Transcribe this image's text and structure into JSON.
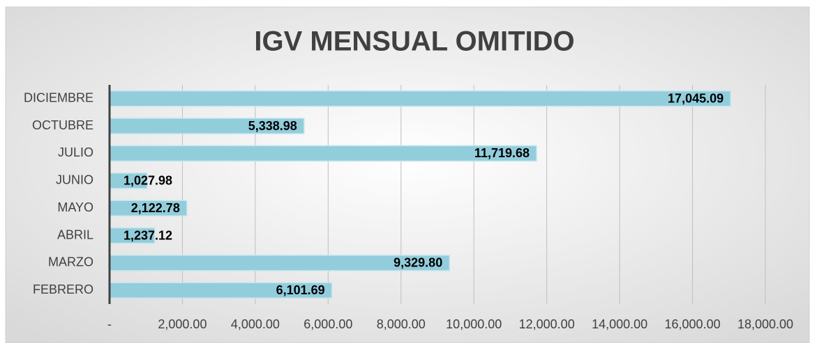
{
  "chart_data": {
    "type": "bar",
    "orientation": "horizontal",
    "title": "IGV MENSUAL OMITIDO",
    "categories": [
      "FEBRERO",
      "MARZO",
      "ABRIL",
      "MAYO",
      "JUNIO",
      "JULIO",
      "OCTUBRE",
      "DICIEMBRE"
    ],
    "values": [
      6101.69,
      9329.8,
      1237.12,
      2122.78,
      1027.98,
      11719.68,
      5338.98,
      17045.09
    ],
    "value_labels": [
      "6,101.69",
      "9,329.80",
      "1,237.12",
      "2,122.78",
      "1,027.98",
      "11,719.68",
      "5,338.98",
      "17,045.09"
    ],
    "color": "#92cddc",
    "xlim": [
      0,
      18000
    ],
    "xticks": [
      {
        "value": 0,
        "label": "-"
      },
      {
        "value": 2000,
        "label": "2,000.00"
      },
      {
        "value": 4000,
        "label": "4,000.00"
      },
      {
        "value": 6000,
        "label": "6,000.00"
      },
      {
        "value": 8000,
        "label": "8,000.00"
      },
      {
        "value": 10000,
        "label": "10,000.00"
      },
      {
        "value": 12000,
        "label": "12,000.00"
      },
      {
        "value": 14000,
        "label": "14,000.00"
      },
      {
        "value": 16000,
        "label": "16,000.00"
      },
      {
        "value": 18000,
        "label": "18,000.00"
      }
    ],
    "grid": true
  }
}
